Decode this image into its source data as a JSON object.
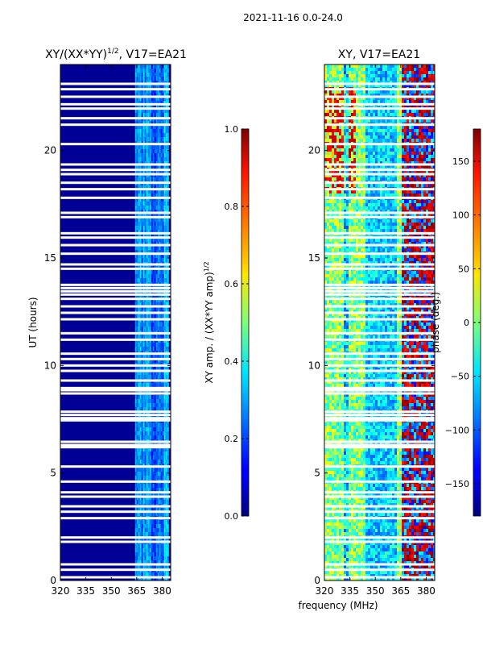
{
  "figure_title": "2021-11-16 0.0-24.0",
  "shared_xlabel": "frequency (MHz)",
  "chart_data": [
    {
      "type": "heatmap",
      "title": "XY/(XX*YY)",
      "title_sup": "1/2",
      "title_suffix": ", V17=EA21",
      "xlabel": "",
      "ylabel": "UT (hours)",
      "xlim": [
        320,
        385
      ],
      "ylim": [
        0,
        24
      ],
      "xticks": [
        320,
        335,
        350,
        365,
        380
      ],
      "yticks": [
        0,
        5,
        10,
        15,
        20
      ],
      "colorbar": {
        "label": "XY amp. / (XX*YY amp)",
        "label_sup": "1/2",
        "range": [
          0.0,
          1.0
        ],
        "ticks": [
          0.0,
          0.2,
          0.4,
          0.6,
          0.8,
          1.0
        ],
        "tick_labels": [
          "0.0",
          "0.2",
          "0.4",
          "0.6",
          "0.8",
          "1.0"
        ],
        "colormap": "jet"
      },
      "description_values": {
        "background_level": 0.02,
        "band_365_382_level": 0.25
      }
    },
    {
      "type": "heatmap",
      "title": "XY, V17=EA21",
      "xlabel": "frequency (MHz)",
      "ylabel": "",
      "xlim": [
        320,
        385
      ],
      "ylim": [
        0,
        24
      ],
      "xticks": [
        320,
        335,
        350,
        365,
        380
      ],
      "yticks": [
        0,
        5,
        10,
        15,
        20
      ],
      "colorbar": {
        "label": "phase (deg.)",
        "range": [
          -180,
          180
        ],
        "ticks": [
          -150,
          -100,
          -50,
          0,
          50,
          100,
          150
        ],
        "tick_labels": [
          "−150",
          "−100",
          "−50",
          "0",
          "50",
          "100",
          "150"
        ],
        "colormap": "jet"
      }
    }
  ],
  "flagged_ut_hours": [
    0.15,
    0.5,
    0.75,
    1.8,
    2.0,
    2.9,
    3.2,
    3.45,
    3.9,
    4.1,
    4.6,
    5.3,
    6.2,
    6.3,
    6.45,
    7.45,
    7.55,
    7.7,
    7.85,
    8.7,
    8.85,
    8.95,
    9.3,
    9.75,
    10.0,
    10.3,
    10.55,
    11.2,
    11.5,
    12.15,
    12.45,
    12.75,
    13.1,
    13.3,
    13.45,
    13.6,
    13.75,
    14.5,
    14.7,
    15.2,
    15.6,
    15.95,
    16.15,
    16.9,
    17.1,
    17.8,
    18.2,
    18.5,
    18.9,
    19.1,
    19.35,
    20.3,
    21.2,
    21.5,
    21.95,
    22.15,
    22.5,
    22.85,
    23.1
  ]
}
